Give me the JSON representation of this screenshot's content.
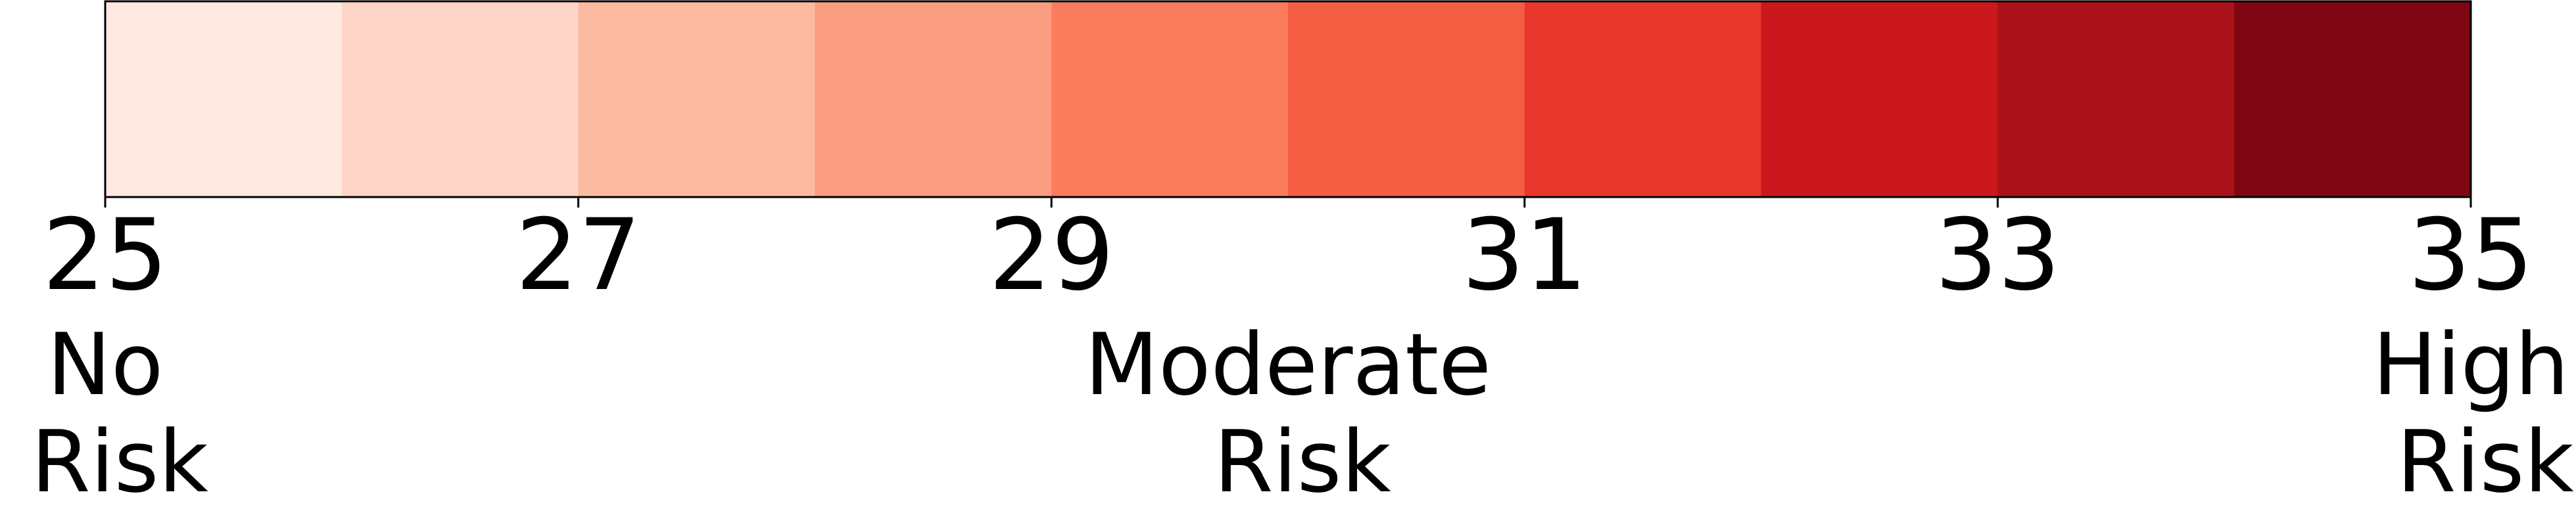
{
  "chart_data": {
    "type": "colorbar",
    "orientation": "horizontal",
    "range": [
      25,
      35
    ],
    "bins": [
      {
        "from": 25,
        "to": 26,
        "color": "#fee9e0"
      },
      {
        "from": 26,
        "to": 27,
        "color": "#fdd6c7"
      },
      {
        "from": 27,
        "to": 28,
        "color": "#fcbba1"
      },
      {
        "from": 28,
        "to": 29,
        "color": "#fb9d80"
      },
      {
        "from": 29,
        "to": 30,
        "color": "#fb7c5c"
      },
      {
        "from": 30,
        "to": 31,
        "color": "#f55d43"
      },
      {
        "from": 31,
        "to": 32,
        "color": "#e9372c"
      },
      {
        "from": 32,
        "to": 33,
        "color": "#ca181d"
      },
      {
        "from": 33,
        "to": 34,
        "color": "#ab1219"
      },
      {
        "from": 34,
        "to": 35,
        "color": "#7f0612"
      }
    ],
    "ticks": [
      25,
      27,
      29,
      31,
      33,
      35
    ],
    "tick_labels": [
      "25",
      "27",
      "29",
      "31",
      "33",
      "35"
    ],
    "category_labels": [
      {
        "value": 25,
        "lines": [
          "No",
          "Risk"
        ]
      },
      {
        "value": 30,
        "lines": [
          "Moderate",
          "Risk"
        ]
      },
      {
        "value": 35,
        "lines": [
          "High",
          "Risk"
        ]
      }
    ]
  }
}
